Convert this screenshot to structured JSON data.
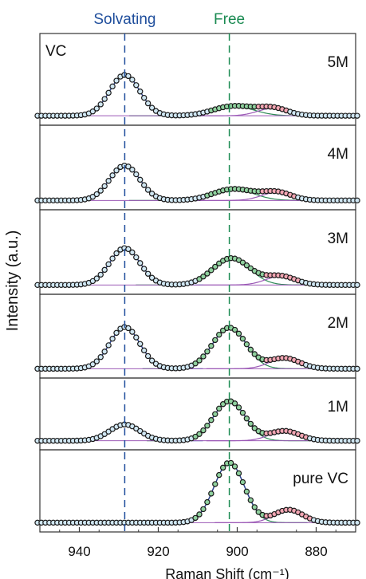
{
  "chart_data": {
    "type": "line",
    "title": "",
    "xlabel": "Raman Shift (cm⁻¹)",
    "ylabel": "Intensity (a.u.)",
    "x_reversed": true,
    "xlim": [
      950,
      870
    ],
    "xticks": [
      940,
      920,
      900,
      880
    ],
    "grid": false,
    "sample_label": "VC",
    "reference_lines": [
      {
        "name": "Solvating",
        "x": 928.5,
        "color": "#1f4e9c"
      },
      {
        "name": "Free",
        "x": 902.0,
        "color": "#1a8a52"
      }
    ],
    "colors": {
      "points_edge": "#1a1a1a",
      "points_fill": "#cfe6f2",
      "fit_total": "#2a3f8f",
      "solvating_component": "#3c6fb4",
      "free_component": "#2e8b57",
      "free_component_fill": "#8fd19e",
      "shoulder_component": "#9b59b6",
      "shoulder_component_fill": "#f2a6b3",
      "panel_border": "#333333"
    },
    "panels": [
      {
        "label": "5M",
        "baseline": 0.02,
        "peaks": [
          {
            "component": "solvating",
            "center": 928.5,
            "height": 0.55,
            "fwhm": 9.0
          },
          {
            "component": "free",
            "center": 901.0,
            "height": 0.13,
            "fwhm": 12.0
          },
          {
            "component": "shoulder",
            "center": 891.0,
            "height": 0.1,
            "fwhm": 9.0
          }
        ]
      },
      {
        "label": "4M",
        "baseline": 0.02,
        "peaks": [
          {
            "component": "solvating",
            "center": 928.5,
            "height": 0.52,
            "fwhm": 9.0
          },
          {
            "component": "free",
            "center": 901.0,
            "height": 0.17,
            "fwhm": 12.0
          },
          {
            "component": "shoulder",
            "center": 890.0,
            "height": 0.12,
            "fwhm": 9.0
          }
        ]
      },
      {
        "label": "3M",
        "baseline": 0.02,
        "peaks": [
          {
            "component": "solvating",
            "center": 928.5,
            "height": 0.55,
            "fwhm": 9.0
          },
          {
            "component": "free",
            "center": 901.5,
            "height": 0.4,
            "fwhm": 11.0
          },
          {
            "component": "shoulder",
            "center": 889.0,
            "height": 0.13,
            "fwhm": 9.0
          }
        ]
      },
      {
        "label": "2M",
        "baseline": 0.02,
        "peaks": [
          {
            "component": "solvating",
            "center": 928.5,
            "height": 0.63,
            "fwhm": 9.0
          },
          {
            "component": "free",
            "center": 902.0,
            "height": 0.62,
            "fwhm": 10.0
          },
          {
            "component": "shoulder",
            "center": 888.0,
            "height": 0.16,
            "fwhm": 9.0
          }
        ]
      },
      {
        "label": "1M",
        "baseline": 0.02,
        "peaks": [
          {
            "component": "solvating",
            "center": 928.5,
            "height": 0.3,
            "fwhm": 9.0
          },
          {
            "component": "free",
            "center": 902.0,
            "height": 0.73,
            "fwhm": 9.5
          },
          {
            "component": "shoulder",
            "center": 888.0,
            "height": 0.18,
            "fwhm": 9.0
          }
        ]
      },
      {
        "label": "pure VC",
        "baseline": 0.02,
        "peaks": [
          {
            "component": "free",
            "center": 902.0,
            "height": 0.93,
            "fwhm": 9.0
          },
          {
            "component": "shoulder",
            "center": 887.0,
            "height": 0.2,
            "fwhm": 8.5
          }
        ]
      }
    ]
  }
}
